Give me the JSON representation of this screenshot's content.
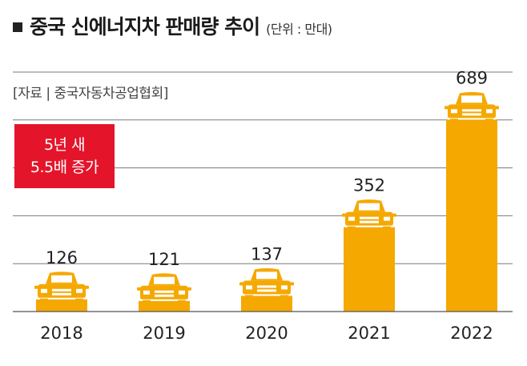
{
  "title": "중국 신에너지차 판매량 추이",
  "unit": "(단위 : 만대)",
  "source": "[자료 | 중국자동차공업협회]",
  "badge": {
    "line1": "5년 새",
    "line2": "5.5배 증가"
  },
  "colors": {
    "bar": "#f5a800",
    "badge": "#e4152a",
    "grid": "#7a7a7a",
    "car_detail": "#ffffff"
  },
  "icons": {
    "bar_top": "car-icon"
  },
  "chart_data": {
    "type": "bar",
    "categories": [
      "2018",
      "2019",
      "2020",
      "2021",
      "2022"
    ],
    "values": [
      126,
      121,
      137,
      352,
      689
    ],
    "title": "중국 신에너지차 판매량 추이",
    "xlabel": "",
    "ylabel": "",
    "unit": "(단위 : 만대)",
    "ylim": [
      0,
      750
    ],
    "grid": true
  }
}
